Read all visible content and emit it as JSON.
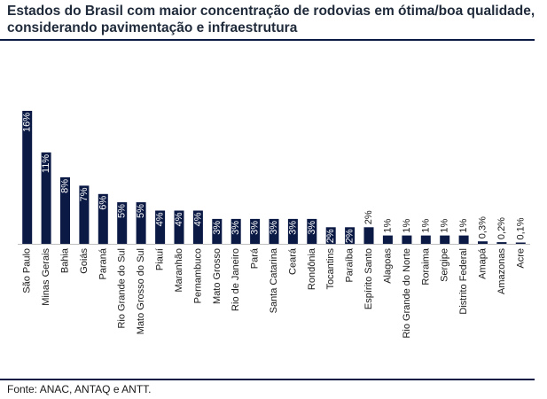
{
  "header": {
    "title_line1": "Estados do Brasil com maior concentração de rodovias em ótima/boa qualidade,",
    "title_line2": "considerando pavimentação e infraestrutura"
  },
  "footer": {
    "source": "Fonte: ANAC, ANTAQ e ANTT."
  },
  "colors": {
    "bar": "#0b1a45",
    "rule": "#0b1a45",
    "label_inside": "#ffffff",
    "label_outside": "#1a1a1a"
  },
  "chart_data": {
    "type": "bar",
    "title": "Estados do Brasil com maior concentração de rodovias em ótima/boa qualidade, considerando pavimentação e infraestrutura",
    "xlabel": "",
    "ylabel": "",
    "unit": "%",
    "grid": false,
    "legend": "none",
    "ylim": [
      0,
      16
    ],
    "categories": [
      "São Paulo",
      "Minas Gerais",
      "Bahia",
      "Goiás",
      "Paraná",
      "Rio Grande do Sul",
      "Mato Grosso do Sul",
      "Piauí",
      "Maranhão",
      "Pernambuco",
      "Mato Grosso",
      "Rio de Janeiro",
      "Pará",
      "Santa Catarina",
      "Ceará",
      "Rondônia",
      "Tocantins",
      "Paraíba",
      "Espírito Santo",
      "Alagoas",
      "Rio Grande do Norte",
      "Roraima",
      "Sergipe",
      "Distrito Federal",
      "Amapá",
      "Amazonas",
      "Acre"
    ],
    "values": [
      16,
      11,
      8,
      7,
      6,
      5,
      5,
      4,
      4,
      4,
      3,
      3,
      3,
      3,
      3,
      3,
      2,
      2,
      2,
      1,
      1,
      1,
      1,
      1,
      0.3,
      0.2,
      0.1
    ],
    "data_labels": [
      "16%",
      "11%",
      "8%",
      "7%",
      "6%",
      "5%",
      "5%",
      "4%",
      "4%",
      "4%",
      "3%",
      "3%",
      "3%",
      "3%",
      "3%",
      "3%",
      "2%",
      "2%",
      "2%",
      "1%",
      "1%",
      "1%",
      "1%",
      "1%",
      "0,3%",
      "0,2%",
      "0,1%"
    ],
    "label_inside": [
      true,
      true,
      true,
      true,
      true,
      true,
      true,
      true,
      true,
      true,
      true,
      true,
      true,
      true,
      true,
      true,
      true,
      true,
      false,
      false,
      false,
      false,
      false,
      false,
      false,
      false,
      false
    ]
  }
}
